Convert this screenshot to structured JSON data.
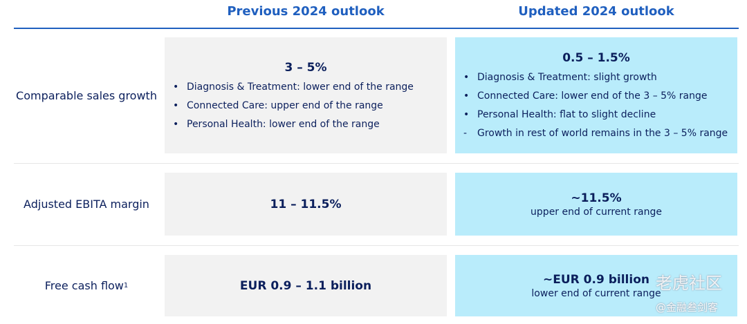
{
  "header": {
    "columns": [
      "Previous 2024 outlook",
      "Updated 2024 outlook"
    ]
  },
  "rows": [
    {
      "label": "Comparable sales growth",
      "previous": {
        "headline": "3 – 5%",
        "items": [
          {
            "marker": "•",
            "text": "Diagnosis & Treatment: lower end of the range"
          },
          {
            "marker": "•",
            "text": "Connected Care: upper end of the range"
          },
          {
            "marker": "•",
            "text": "Personal Health: lower end of the range"
          }
        ]
      },
      "updated": {
        "headline": "0.5 – 1.5%",
        "items": [
          {
            "marker": "•",
            "text": "Diagnosis & Treatment: slight growth"
          },
          {
            "marker": "•",
            "text": "Connected Care: lower end of the 3 – 5% range"
          },
          {
            "marker": "•",
            "text": "Personal Health: flat to slight decline"
          },
          {
            "marker": "-",
            "text": "Growth in rest of world remains in the 3 – 5% range"
          }
        ]
      }
    },
    {
      "label": "Adjusted EBITA margin",
      "previous": {
        "headline": "11 – 11.5%"
      },
      "updated": {
        "headline": "~11.5%",
        "note": "upper end of current range"
      }
    },
    {
      "label": "Free cash flow",
      "footnote": "1",
      "previous": {
        "headline": "EUR 0.9 – 1.1 billion"
      },
      "updated": {
        "headline": "~EUR 0.9 billion",
        "note": "lower end of current range"
      }
    }
  ],
  "watermark": {
    "title": "老虎社区",
    "handle": "@金融叁剑客"
  }
}
